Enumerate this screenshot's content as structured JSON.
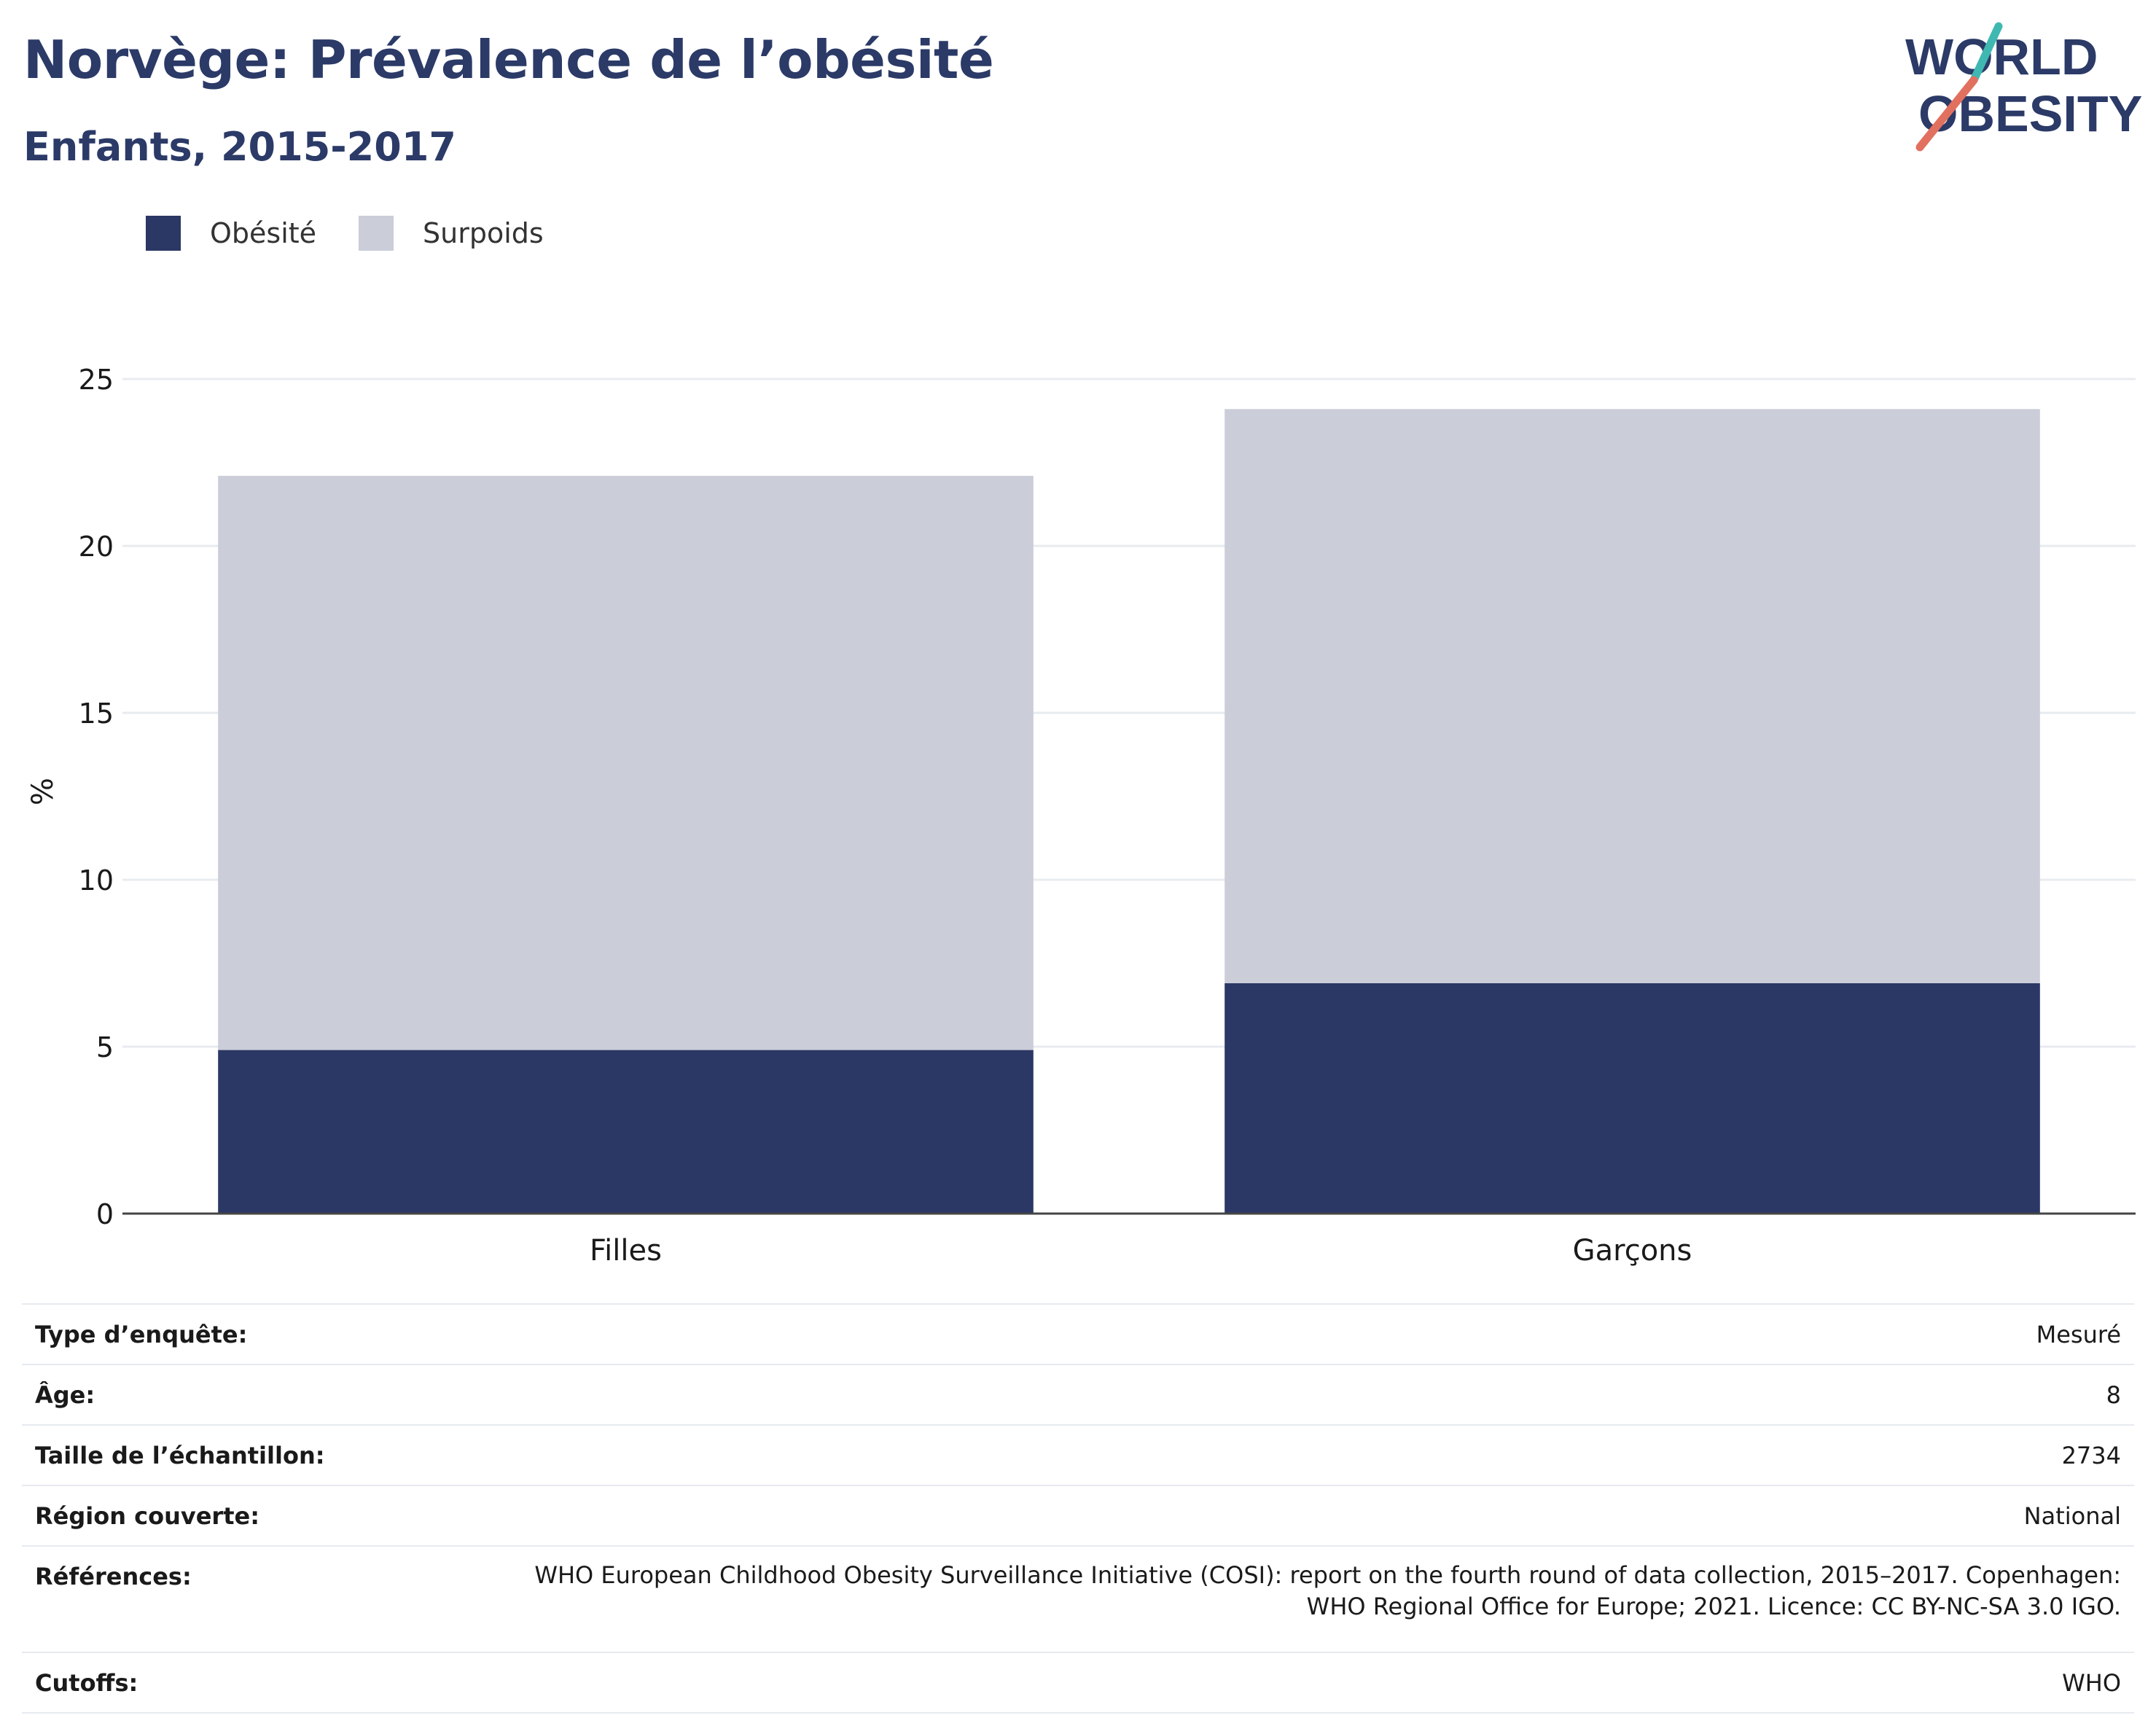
{
  "header": {
    "title": "Norvège: Prévalence de l’obésité",
    "subtitle": "Enfants, 2015-2017"
  },
  "logo": {
    "line1": "WORLD",
    "line2": "OBESITY"
  },
  "colors": {
    "obesity": "#2b3764",
    "overweight": "#cbcdd9",
    "title": "#2b3a67",
    "logo_teal": "#3fb8b2",
    "logo_coral": "#e2705f"
  },
  "legend": [
    {
      "label": "Obésité",
      "color": "#2b3764"
    },
    {
      "label": "Surpoids",
      "color": "#cbcdd9"
    }
  ],
  "chart_data": {
    "type": "bar",
    "stacked": true,
    "categories": [
      "Filles",
      "Garçons"
    ],
    "series": [
      {
        "name": "Obésité",
        "values": [
          4.9,
          6.9
        ]
      },
      {
        "name": "Surpoids",
        "values": [
          17.2,
          17.2
        ]
      }
    ],
    "ylabel": "%",
    "ylim": [
      0,
      25
    ],
    "yticks": [
      0,
      5,
      10,
      15,
      20,
      25
    ],
    "grid": true,
    "legend_position": "top-left"
  },
  "info": [
    {
      "label": "Type d’enquête:",
      "value": "Mesuré"
    },
    {
      "label": "Âge:",
      "value": "8"
    },
    {
      "label": "Taille de l’échantillon:",
      "value": "2734"
    },
    {
      "label": "Région couverte:",
      "value": "National"
    },
    {
      "label": "Références:",
      "value_line1": "WHO European Childhood Obesity Surveillance Initiative (COSI): report on the fourth round of data collection, 2015–2017. Copenhagen:",
      "value_line2": "WHO Regional Office for Europe; 2021. Licence: CC BY-NC-SA 3.0 IGO."
    },
    {
      "label": "Cutoffs:",
      "value": "WHO"
    }
  ]
}
